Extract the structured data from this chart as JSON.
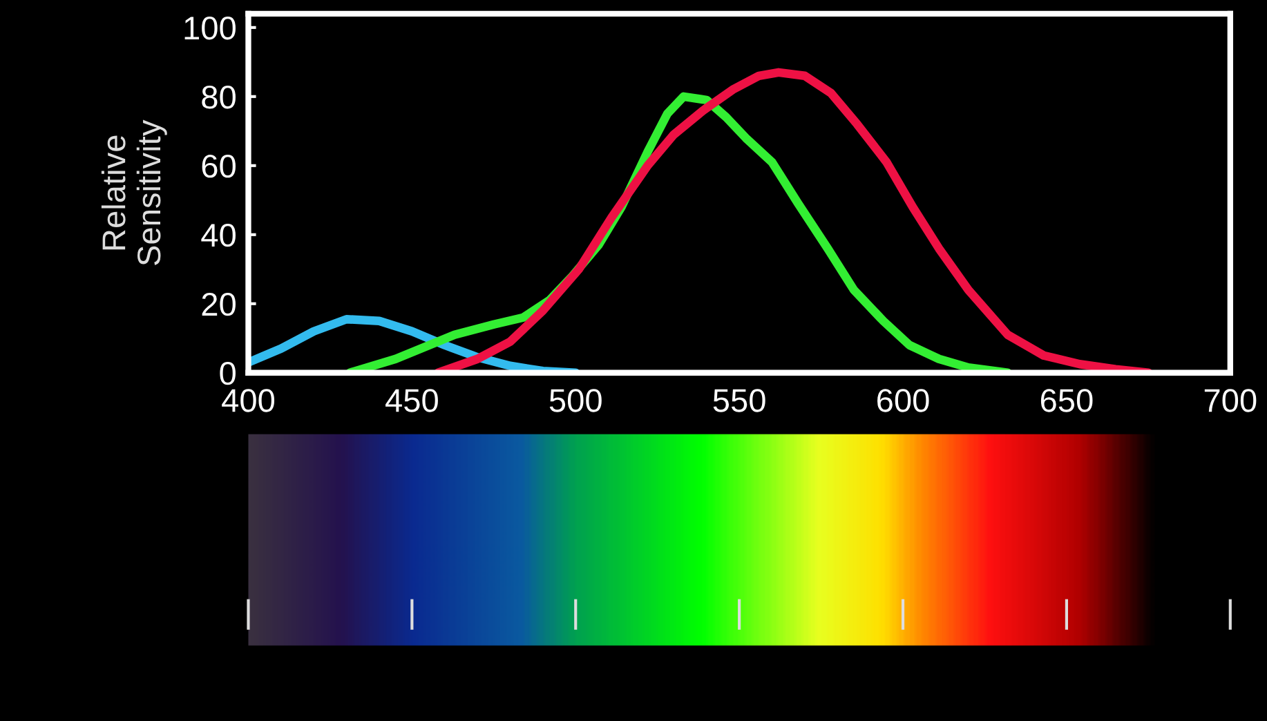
{
  "chart_data": {
    "type": "line",
    "ylabel": "Relative\nSensitivity",
    "xlim": [
      400,
      700
    ],
    "xticks": [
      400,
      450,
      500,
      550,
      600,
      650,
      700
    ],
    "ylim": [
      0,
      104
    ],
    "yticks": [
      0,
      20,
      40,
      60,
      80,
      100
    ],
    "grid": false,
    "marker": "none",
    "line_style": "solid",
    "series": [
      {
        "color": "#33bbee",
        "x": [
          400,
          410,
          420,
          430,
          440,
          450,
          460,
          470,
          480,
          490,
          500
        ],
        "values": [
          3,
          7,
          12,
          15.5,
          15,
          12,
          8,
          4.5,
          2,
          0.5,
          0
        ]
      },
      {
        "color": "#33ee33",
        "x": [
          431,
          445,
          463,
          475,
          484,
          492,
          499,
          507,
          514,
          522,
          528,
          533,
          540,
          546,
          552,
          560,
          568,
          577,
          585,
          594,
          602,
          611,
          620,
          628,
          632
        ],
        "values": [
          0,
          4,
          11,
          14,
          16,
          21,
          28,
          37,
          48,
          64,
          75,
          80,
          79,
          74,
          68,
          61,
          49,
          36,
          24,
          15,
          8,
          4,
          1.5,
          0.5,
          0
        ]
      },
      {
        "color": "#ee1144",
        "x": [
          458,
          470,
          480,
          490,
          501,
          511,
          522,
          530,
          539,
          548,
          556,
          562,
          570,
          578,
          586,
          595,
          603,
          611,
          620,
          632,
          643,
          654,
          665,
          675
        ],
        "values": [
          0,
          4,
          9,
          18,
          30,
          45,
          60,
          69,
          76,
          82,
          86,
          87,
          86,
          81,
          72,
          61,
          48,
          36,
          24,
          11,
          5,
          2.5,
          1,
          0
        ]
      }
    ]
  }
}
